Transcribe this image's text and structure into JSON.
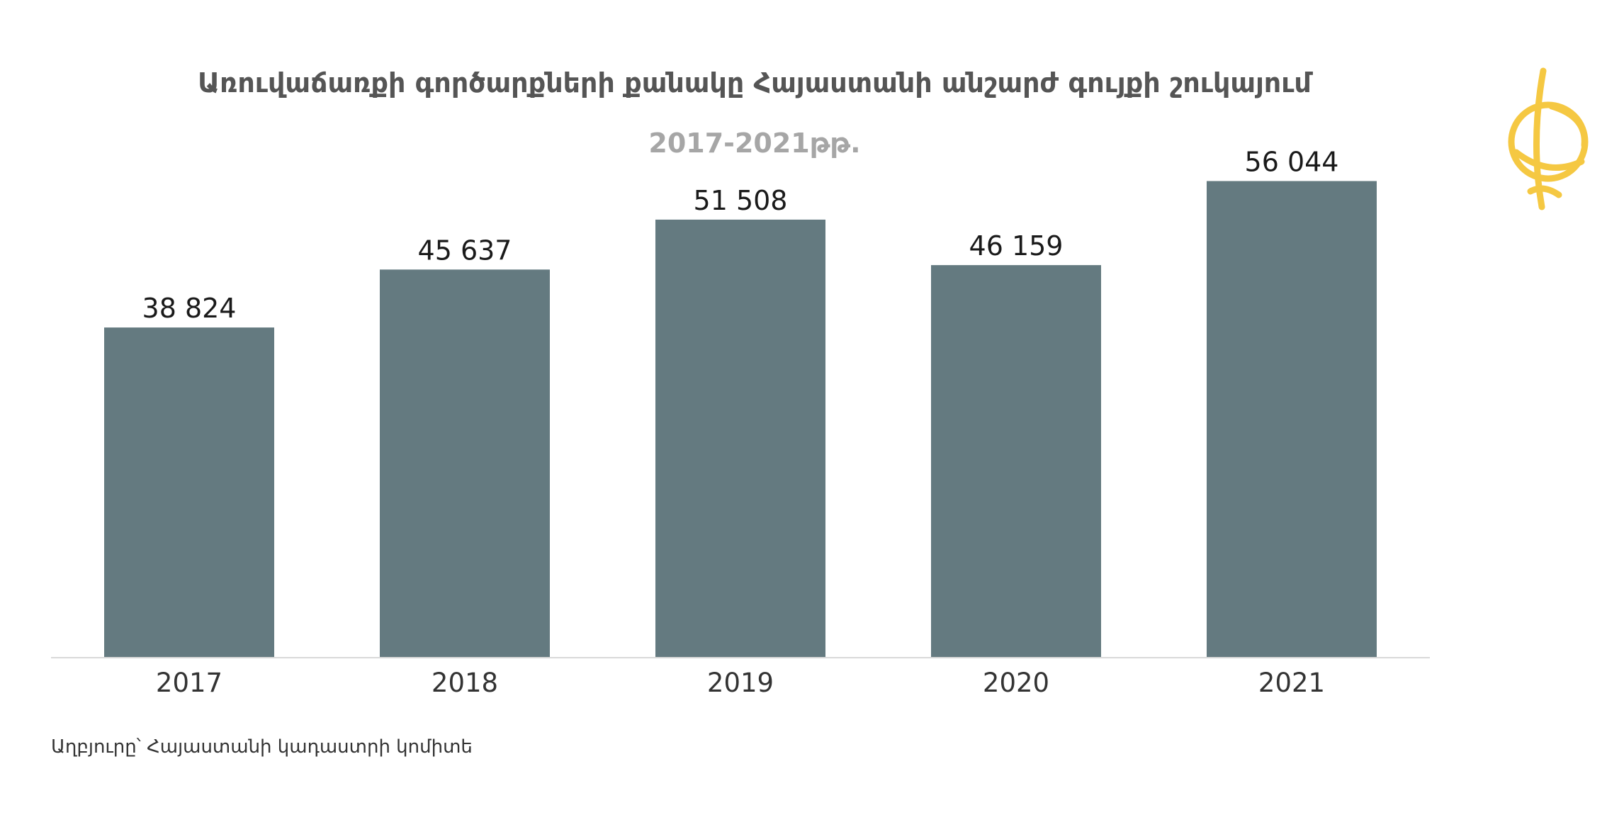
{
  "colors": {
    "bar": "#647a80",
    "axis": "#d9d9d9",
    "logo": "#f5c842"
  },
  "logo": {
    "icon": "globe-logo-icon"
  },
  "source": "Աղբյուրը՝ Հայաստանի կադաստրի կոմիտե",
  "chart_data": {
    "type": "bar",
    "title": "Առուվաճառքի գործարքների քանակը  Հայաստանի անշարժ գույքի շուկայում",
    "subtitle": "2017-2021թթ.",
    "categories": [
      "2017",
      "2018",
      "2019",
      "2020",
      "2021"
    ],
    "values": [
      38824,
      45637,
      51508,
      46159,
      56044
    ],
    "labels": [
      "38 824",
      "45 637",
      "51 508",
      "46 159",
      "56 044"
    ],
    "xlabel": "",
    "ylabel": "",
    "ylim": [
      0,
      60000
    ],
    "grid": false,
    "legend": "none"
  }
}
